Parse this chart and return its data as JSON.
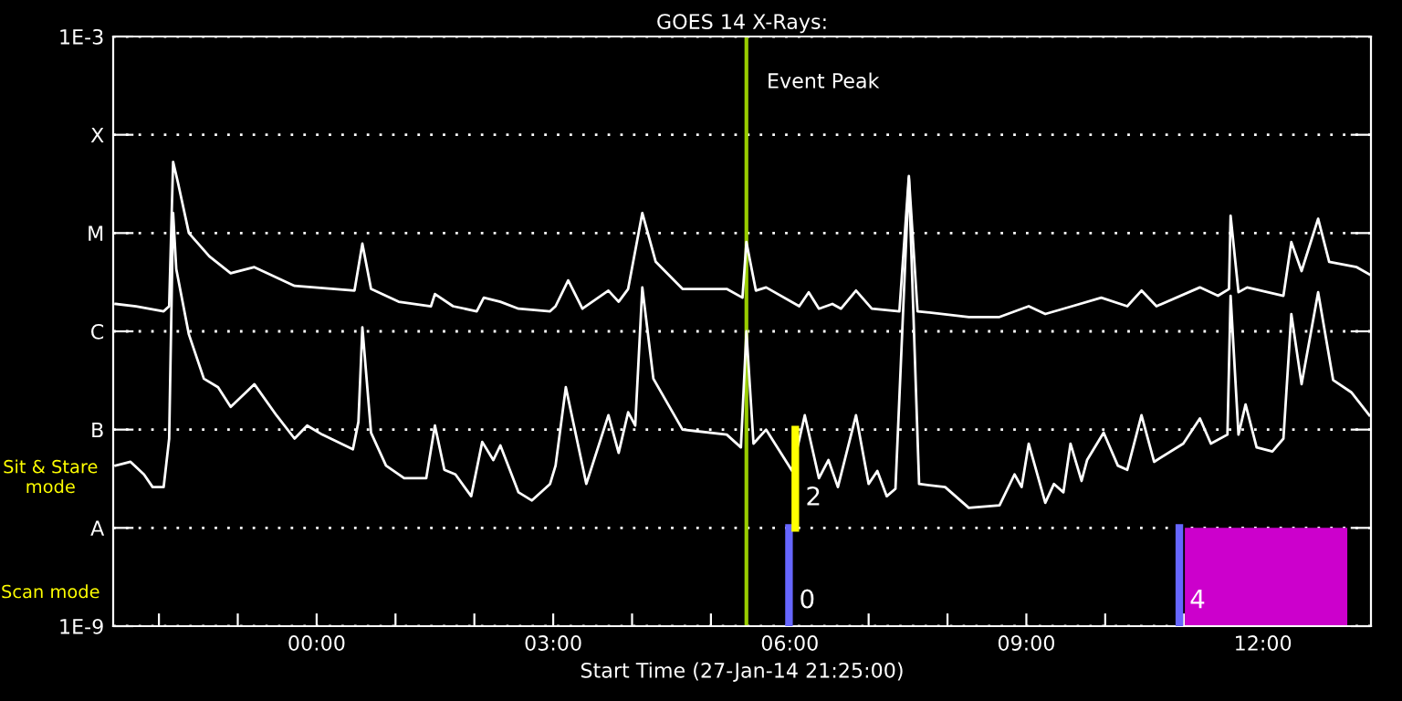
{
  "chart_data": {
    "type": "line",
    "title": "GOES 14 X-Rays:",
    "xlabel": "Start Time (27-Jan-14 21:25:00)",
    "log": "y",
    "grid": "y",
    "line_style": "solid",
    "marker": "none",
    "legend": false,
    "xlim": [
      -2.58,
      13.37
    ],
    "ylim": [
      1e-09,
      0.001
    ],
    "xticks": [
      {
        "value": -2,
        "label": null
      },
      {
        "value": -1,
        "label": null
      },
      {
        "value": 0,
        "label": "00:00"
      },
      {
        "value": 1,
        "label": null
      },
      {
        "value": 2,
        "label": null
      },
      {
        "value": 3,
        "label": "03:00"
      },
      {
        "value": 4,
        "label": null
      },
      {
        "value": 5,
        "label": null
      },
      {
        "value": 6,
        "label": "06:00"
      },
      {
        "value": 7,
        "label": null
      },
      {
        "value": 8,
        "label": null
      },
      {
        "value": 9,
        "label": "09:00"
      },
      {
        "value": 10,
        "label": null
      },
      {
        "value": 11,
        "label": null
      },
      {
        "value": 12,
        "label": "12:00"
      },
      {
        "value": 13,
        "label": null
      }
    ],
    "yticks": [
      {
        "value": 1e-09,
        "label": "1E-9"
      },
      {
        "value": 1e-08,
        "label": "A"
      },
      {
        "value": 1e-07,
        "label": "B"
      },
      {
        "value": 1e-06,
        "label": "C"
      },
      {
        "value": 1e-05,
        "label": "M"
      },
      {
        "value": 0.0001,
        "label": "X"
      },
      {
        "value": 0.001,
        "label": "1E-3"
      }
    ],
    "series": [
      {
        "color": "#ffffff",
        "x": [
          -2.55,
          -2.29,
          -1.94,
          -1.87,
          -1.82,
          -1.76,
          -1.62,
          -1.36,
          -1.09,
          -0.79,
          -0.28,
          0.48,
          0.58,
          0.69,
          1.04,
          1.45,
          1.5,
          1.73,
          2.03,
          2.12,
          2.33,
          2.56,
          2.96,
          3.03,
          3.19,
          3.37,
          3.7,
          3.83,
          3.95,
          4.13,
          4.3,
          4.64,
          5.2,
          5.4,
          5.45,
          5.57,
          5.7,
          6.12,
          6.24,
          6.37,
          6.54,
          6.65,
          6.84,
          7.04,
          7.39,
          7.51,
          7.62,
          8.27,
          8.66,
          9.03,
          9.24,
          9.58,
          9.95,
          10.28,
          10.46,
          10.65,
          11.2,
          11.43,
          11.57,
          11.59,
          11.69,
          11.8,
          12.26,
          12.36,
          12.49,
          12.7,
          12.84,
          13.19,
          13.35
        ],
        "values": [
          1.9e-06,
          1.8e-06,
          1.6e-06,
          1.8e-06,
          5.3e-05,
          3.3e-05,
          1e-05,
          5.8e-06,
          3.9e-06,
          4.5e-06,
          2.9e-06,
          2.6e-06,
          7.8e-06,
          2.7e-06,
          2e-06,
          1.8e-06,
          2.4e-06,
          1.8e-06,
          1.6e-06,
          2.2e-06,
          2e-06,
          1.7e-06,
          1.6e-06,
          1.8e-06,
          3.3e-06,
          1.7e-06,
          2.6e-06,
          2e-06,
          2.7e-06,
          1.6e-05,
          5.1e-06,
          2.7e-06,
          2.7e-06,
          2.2e-06,
          8.1e-06,
          2.6e-06,
          2.8e-06,
          1.8e-06,
          2.5e-06,
          1.7e-06,
          1.9e-06,
          1.7e-06,
          2.6e-06,
          1.7e-06,
          1.6e-06,
          3.8e-05,
          1.6e-06,
          1.4e-06,
          1.4e-06,
          1.8e-06,
          1.5e-06,
          1.8e-06,
          2.2e-06,
          1.8e-06,
          2.6e-06,
          1.8e-06,
          2.8e-06,
          2.3e-06,
          2.7e-06,
          1.5e-05,
          2.5e-06,
          2.8e-06,
          2.3e-06,
          8.1e-06,
          4.1e-06,
          1.4e-05,
          5.1e-06,
          4.5e-06,
          3.8e-06
        ]
      },
      {
        "color": "#ffffff",
        "x": [
          -2.55,
          -2.36,
          -2.19,
          -2.08,
          -1.94,
          -1.87,
          -1.82,
          -1.78,
          -1.62,
          -1.43,
          -1.25,
          -1.09,
          -0.79,
          -0.51,
          -0.28,
          -0.12,
          0.07,
          0.46,
          0.53,
          0.58,
          0.69,
          0.88,
          1.11,
          1.39,
          1.5,
          1.62,
          1.76,
          1.96,
          2.1,
          2.24,
          2.33,
          2.56,
          2.73,
          2.96,
          3.03,
          3.16,
          3.42,
          3.7,
          3.83,
          3.95,
          4.04,
          4.13,
          4.27,
          4.64,
          5.2,
          5.38,
          5.45,
          5.54,
          5.7,
          6.03,
          6.19,
          6.37,
          6.49,
          6.61,
          6.84,
          7.0,
          7.11,
          7.23,
          7.34,
          7.51,
          7.64,
          7.97,
          8.27,
          8.66,
          8.85,
          8.94,
          9.03,
          9.24,
          9.35,
          9.47,
          9.56,
          9.7,
          9.77,
          9.98,
          10.16,
          10.28,
          10.46,
          10.62,
          10.99,
          11.2,
          11.34,
          11.55,
          11.59,
          11.69,
          11.78,
          11.92,
          12.12,
          12.26,
          12.36,
          12.49,
          12.7,
          12.89,
          13.12,
          13.35
        ],
        "values": [
          4.3e-08,
          4.7e-08,
          3.5e-08,
          2.6e-08,
          2.6e-08,
          8.1e-08,
          1.6e-05,
          4.3e-06,
          9.3e-07,
          3.3e-07,
          2.7e-07,
          1.7e-07,
          2.9e-07,
          1.4e-07,
          8.1e-08,
          1.1e-07,
          8.9e-08,
          6.3e-08,
          1.2e-07,
          1.1e-06,
          9.3e-08,
          4.3e-08,
          3.2e-08,
          3.2e-08,
          1.1e-07,
          3.9e-08,
          3.5e-08,
          2.1e-08,
          7.5e-08,
          4.9e-08,
          6.9e-08,
          2.3e-08,
          1.9e-08,
          2.8e-08,
          4.3e-08,
          2.7e-07,
          2.8e-08,
          1.4e-07,
          5.8e-08,
          1.5e-07,
          1.1e-07,
          2.8e-06,
          3.3e-07,
          1e-07,
          8.9e-08,
          6.6e-08,
          1e-06,
          7.2e-08,
          1e-07,
          3.8e-08,
          1.4e-07,
          3.2e-08,
          4.9e-08,
          2.6e-08,
          1.4e-07,
          2.8e-08,
          3.8e-08,
          2.1e-08,
          2.5e-08,
          3.6e-05,
          2.8e-08,
          2.6e-08,
          1.6e-08,
          1.7e-08,
          3.5e-08,
          2.6e-08,
          7.2e-08,
          1.8e-08,
          2.8e-08,
          2.3e-08,
          7.2e-08,
          3e-08,
          4.9e-08,
          9.3e-08,
          4.3e-08,
          3.9e-08,
          1.4e-07,
          4.7e-08,
          7.2e-08,
          1.3e-07,
          7.2e-08,
          8.9e-08,
          2.3e-06,
          8.9e-08,
          1.8e-07,
          6.6e-08,
          6e-08,
          8.1e-08,
          1.5e-06,
          2.9e-07,
          2.5e-06,
          3.2e-07,
          2.4e-07,
          1.4e-07
        ]
      }
    ],
    "ref_lines": [
      {
        "axis": "x",
        "value": 5.45,
        "label": "Event Peak",
        "color": "#99cc00"
      },
      {
        "axis": "x",
        "value": 5.99,
        "color": "#6666ff"
      },
      {
        "axis": "x",
        "value": 6.07,
        "color": "#ffff00"
      },
      {
        "axis": "x",
        "value": 10.94,
        "color": "#6666ff"
      }
    ],
    "bands": [
      {
        "axis": "x",
        "from": 11.01,
        "to": 13.07,
        "color": "#cc00cc"
      }
    ],
    "annotations": [
      "Sit & Stare\nmode",
      "Scan mode",
      {
        "text": "2",
        "x": 6.07,
        "y": 2e-08
      },
      {
        "text": "0",
        "x": 5.99,
        "y": 1.8e-09
      },
      {
        "text": "4",
        "x": 10.94,
        "y": 1.8e-09
      }
    ]
  }
}
